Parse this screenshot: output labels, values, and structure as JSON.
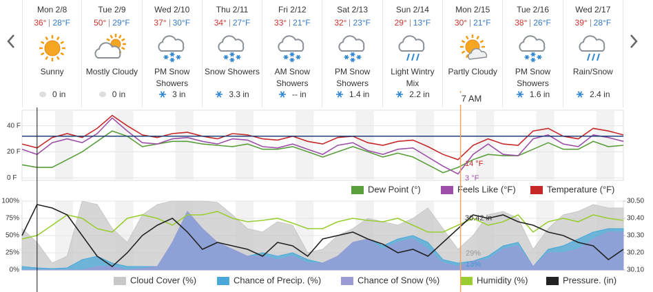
{
  "forecast": {
    "days": [
      {
        "date": "Mon 2/8",
        "high": "36°",
        "low": "28°F",
        "condition": "Sunny",
        "precip": "0 in"
      },
      {
        "date": "Tue 2/9",
        "high": "50°",
        "low": "29°F",
        "condition": "Mostly Cloudy",
        "precip": "0 in"
      },
      {
        "date": "Wed 2/10",
        "high": "37°",
        "low": "30°F",
        "condition": "PM Snow Showers",
        "precip": "3 in"
      },
      {
        "date": "Thu 2/11",
        "high": "34°",
        "low": "27°F",
        "condition": "Snow Showers",
        "precip": "3.3 in"
      },
      {
        "date": "Fri 2/12",
        "high": "33°",
        "low": "21°F",
        "condition": "AM Snow Showers",
        "precip": "-- in"
      },
      {
        "date": "Sat 2/13",
        "high": "32°",
        "low": "23°F",
        "condition": "PM Snow Showers",
        "precip": "1.4 in"
      },
      {
        "date": "Sun 2/14",
        "high": "29°",
        "low": "13°F",
        "condition": "Light Wintry Mix",
        "precip": "2.2 in"
      },
      {
        "date": "Mon 2/15",
        "high": "30°",
        "low": "21°F",
        "condition": "Partly Cloudy"
      },
      {
        "date": "Tue 2/16",
        "high": "38°",
        "low": "26°F",
        "condition": "PM Snow Showers",
        "precip": "1.6 in"
      },
      {
        "date": "Wed 2/17",
        "high": "39°",
        "low": "28°F",
        "condition": "Rain/Snow",
        "precip": "2.4 in"
      }
    ]
  },
  "cursor": {
    "x": 175,
    "label": "7 AM",
    "color": "#f4a460"
  },
  "now_x": 6,
  "chart_data": [
    {
      "type": "line",
      "x": [
        0,
        6,
        12,
        18,
        24,
        30,
        36,
        42,
        48,
        54,
        60,
        66,
        72,
        78,
        84,
        90,
        96,
        102,
        108,
        114,
        120,
        126,
        132,
        138,
        144,
        150,
        156,
        162,
        168,
        174,
        180,
        186,
        192,
        198,
        204,
        210,
        216,
        222,
        228,
        234,
        240
      ],
      "xlim": [
        0,
        240
      ],
      "ylim": [
        -2,
        52
      ],
      "yticks": [
        {
          "value": 40,
          "label": "40 F"
        },
        {
          "value": 20,
          "label": "20 F"
        },
        {
          "value": 0,
          "label": "0 F"
        }
      ],
      "grid": true,
      "reference_line": {
        "value": 32,
        "color": "#1f3f7a"
      },
      "series": [
        {
          "name": "Dew Point (°)",
          "color": "#5a9e3c",
          "values": [
            10,
            8,
            8,
            14,
            20,
            28,
            36,
            32,
            24,
            26,
            28,
            28,
            26,
            25,
            24,
            26,
            22,
            22,
            24,
            20,
            16,
            20,
            24,
            20,
            16,
            19,
            16,
            10,
            4,
            8,
            14,
            18,
            17,
            17,
            22,
            27,
            22,
            22,
            28,
            24,
            25
          ]
        },
        {
          "name": "Feels Like (°F)",
          "color": "#9c4fa6",
          "values": [
            22,
            18,
            27,
            30,
            27,
            34,
            46,
            36,
            27,
            26,
            30,
            31,
            28,
            26,
            30,
            29,
            24,
            23,
            26,
            22,
            18,
            25,
            27,
            21,
            18,
            22,
            23,
            16,
            9,
            3,
            18,
            26,
            18,
            17,
            30,
            33,
            26,
            24,
            33,
            31,
            28
          ]
        },
        {
          "name": "Temperature (°F)",
          "color": "#c62828",
          "values": [
            26,
            23,
            31,
            34,
            31,
            38,
            48,
            40,
            33,
            31,
            34,
            35,
            32,
            30,
            34,
            33,
            30,
            29,
            32,
            28,
            26,
            31,
            32,
            27,
            25,
            28,
            29,
            24,
            18,
            14,
            25,
            30,
            26,
            25,
            36,
            38,
            32,
            30,
            38,
            36,
            33
          ]
        }
      ],
      "annotations": [
        {
          "text": "14 °F",
          "color": "#c62828"
        },
        {
          "text": "3 °F",
          "color": "#9c4fa6"
        }
      ]
    },
    {
      "type": "area",
      "x": [
        0,
        6,
        12,
        18,
        24,
        30,
        36,
        42,
        48,
        54,
        60,
        66,
        72,
        78,
        84,
        90,
        96,
        102,
        108,
        114,
        120,
        126,
        132,
        138,
        144,
        150,
        156,
        162,
        168,
        174,
        180,
        186,
        192,
        198,
        204,
        210,
        216,
        222,
        228,
        234,
        240
      ],
      "xlim": [
        0,
        240
      ],
      "ylim": [
        0,
        100
      ],
      "y2lim": [
        30.1,
        30.5
      ],
      "yticks": [
        {
          "value": 100,
          "label": "100%"
        },
        {
          "value": 75,
          "label": "75%"
        },
        {
          "value": 50,
          "label": "50%"
        },
        {
          "value": 25,
          "label": "25%"
        },
        {
          "value": 0,
          "label": "0%"
        }
      ],
      "y2ticks": [
        {
          "value": 30.5,
          "label": "30.50"
        },
        {
          "value": 30.4,
          "label": "30.40"
        },
        {
          "value": 30.3,
          "label": "30.30"
        },
        {
          "value": 30.2,
          "label": "30.20"
        },
        {
          "value": 30.1,
          "label": "30.10"
        }
      ],
      "grid": true,
      "series": [
        {
          "name": "Cloud Cover (%)",
          "color": "#c8c8c8",
          "style": "area",
          "values": [
            60,
            40,
            10,
            20,
            100,
            95,
            60,
            40,
            80,
            95,
            100,
            100,
            100,
            98,
            80,
            60,
            55,
            70,
            65,
            25,
            30,
            50,
            60,
            75,
            70,
            65,
            75,
            90,
            60,
            30,
            50,
            80,
            85,
            75,
            30,
            60,
            80,
            85,
            95,
            90,
            90
          ]
        },
        {
          "name": "Chance of Precip. (%)",
          "color": "#4aa8d8",
          "style": "area",
          "values": [
            5,
            3,
            2,
            3,
            15,
            20,
            10,
            5,
            5,
            5,
            40,
            85,
            60,
            40,
            30,
            20,
            25,
            20,
            25,
            15,
            10,
            20,
            40,
            45,
            35,
            45,
            50,
            40,
            15,
            10,
            13,
            20,
            35,
            40,
            5,
            30,
            35,
            45,
            55,
            60,
            60
          ]
        },
        {
          "name": "Chance of Snow (%)",
          "color": "#9a9bd6",
          "style": "area",
          "values": [
            0,
            0,
            0,
            0,
            0,
            5,
            5,
            0,
            2,
            5,
            40,
            85,
            60,
            40,
            30,
            20,
            20,
            15,
            20,
            10,
            10,
            20,
            40,
            45,
            30,
            40,
            45,
            30,
            10,
            5,
            13,
            15,
            30,
            35,
            5,
            25,
            25,
            30,
            45,
            55,
            55
          ]
        },
        {
          "name": "Humidity (%)",
          "color": "#9acd32",
          "style": "line",
          "values": [
            45,
            50,
            65,
            80,
            75,
            60,
            55,
            75,
            80,
            75,
            65,
            80,
            80,
            85,
            75,
            70,
            72,
            75,
            68,
            60,
            60,
            70,
            75,
            72,
            70,
            75,
            65,
            55,
            55,
            65,
            75,
            65,
            70,
            80,
            55,
            70,
            75,
            70,
            80,
            75,
            72
          ]
        },
        {
          "name": "Pressure. (in)",
          "color": "#222222",
          "style": "line",
          "axis": "y2",
          "values": [
            30.3,
            30.48,
            30.46,
            30.42,
            30.3,
            30.18,
            30.12,
            30.2,
            30.3,
            30.36,
            30.4,
            30.32,
            30.22,
            30.26,
            30.24,
            30.22,
            30.18,
            30.26,
            30.24,
            30.18,
            30.28,
            30.3,
            30.32,
            30.28,
            30.25,
            30.2,
            30.22,
            30.18,
            30.26,
            30.34,
            30.42,
            30.4,
            30.42,
            30.38,
            30.36,
            30.32,
            30.3,
            30.26,
            30.24,
            30.16,
            30.22
          ]
        }
      ],
      "annotations": [
        {
          "text": "30.42 in",
          "color": "#333333"
        },
        {
          "text": "29%",
          "color": "#999999"
        },
        {
          "text": "13%",
          "color": "#3a9ad9"
        }
      ]
    }
  ]
}
